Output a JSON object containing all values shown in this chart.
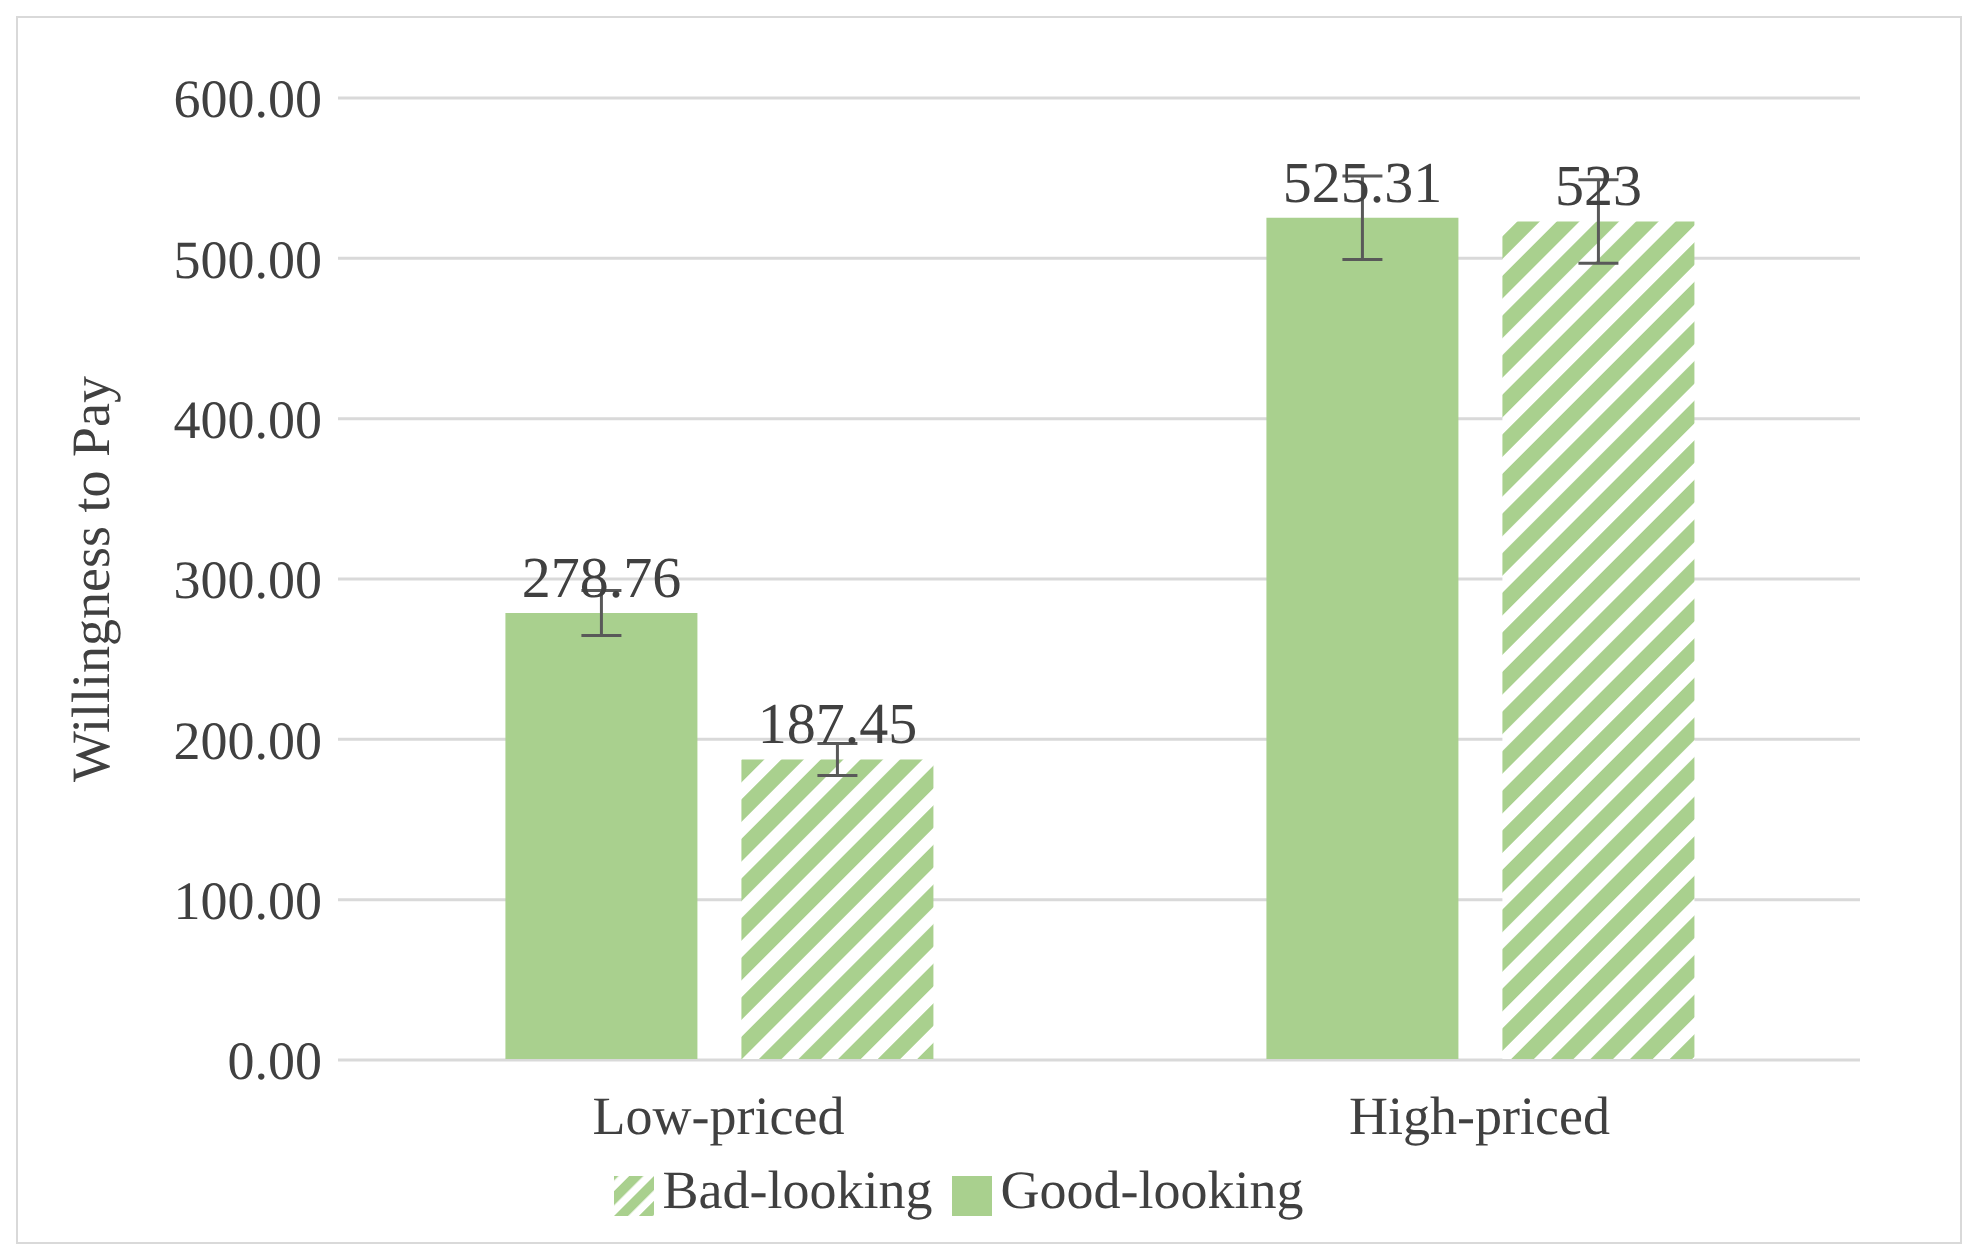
{
  "chart_data": {
    "type": "bar",
    "ylabel": "Willingness to Pay",
    "categories": [
      "Low-priced",
      "High-priced"
    ],
    "series": [
      {
        "name": "Good-looking",
        "color": "#a9d08e",
        "values": [
          278.76,
          525.31
        ],
        "errors": [
          14,
          26
        ]
      },
      {
        "name": "Bad-looking",
        "color": "#a9d08e",
        "values": [
          187.45,
          523
        ],
        "errors": [
          10,
          26
        ]
      }
    ],
    "ylim": [
      0,
      600
    ],
    "yticks": [
      {
        "value": 0,
        "label": "0.00"
      },
      {
        "value": 100,
        "label": "100.00"
      },
      {
        "value": 200,
        "label": "200.00"
      },
      {
        "value": 300,
        "label": "300.00"
      },
      {
        "value": 400,
        "label": "400.00"
      },
      {
        "value": 500,
        "label": "500.00"
      },
      {
        "value": 600,
        "label": "600.00"
      }
    ],
    "grid": "y",
    "legend": "bottom",
    "data_labels": true
  }
}
